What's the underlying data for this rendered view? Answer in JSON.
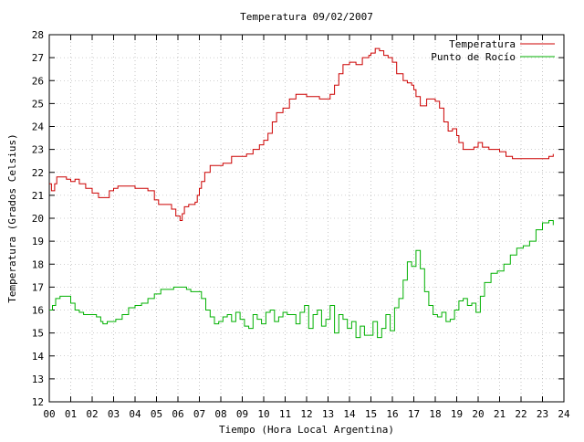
{
  "chart_data": {
    "type": "line",
    "title": "Temperatura 09/02/2007",
    "xlabel": "Tiempo (Hora Local Argentina)",
    "ylabel": "Temperatura (Grados Celsius)",
    "xlim": [
      0,
      24
    ],
    "ylim": [
      12,
      28
    ],
    "xticks": [
      "00",
      "01",
      "02",
      "03",
      "04",
      "05",
      "06",
      "07",
      "08",
      "09",
      "10",
      "11",
      "12",
      "13",
      "14",
      "15",
      "16",
      "17",
      "18",
      "19",
      "20",
      "21",
      "22",
      "23",
      "24"
    ],
    "yticks": [
      "12",
      "13",
      "14",
      "15",
      "16",
      "17",
      "18",
      "19",
      "20",
      "21",
      "22",
      "23",
      "24",
      "25",
      "26",
      "27",
      "28"
    ],
    "grid": true,
    "legend_position": "top-right",
    "series": [
      {
        "name": "Temperatura",
        "color": "#cc0000",
        "x": [
          0.0,
          0.1,
          0.2,
          0.25,
          0.35,
          0.5,
          0.8,
          1.0,
          1.2,
          1.4,
          1.7,
          2.0,
          2.3,
          2.6,
          2.8,
          3.0,
          3.2,
          3.4,
          3.6,
          3.8,
          4.0,
          4.3,
          4.6,
          4.9,
          5.1,
          5.4,
          5.7,
          5.9,
          6.1,
          6.2,
          6.3,
          6.5,
          6.8,
          6.9,
          7.0,
          7.1,
          7.25,
          7.5,
          7.8,
          8.1,
          8.5,
          8.8,
          9.0,
          9.2,
          9.5,
          9.8,
          10.0,
          10.2,
          10.4,
          10.6,
          10.9,
          11.2,
          11.5,
          11.8,
          12.0,
          12.3,
          12.6,
          12.9,
          13.1,
          13.3,
          13.5,
          13.7,
          14.0,
          14.3,
          14.6,
          14.9,
          15.0,
          15.2,
          15.4,
          15.6,
          15.8,
          16.0,
          16.2,
          16.5,
          16.7,
          16.9,
          17.0,
          17.1,
          17.3,
          17.6,
          17.9,
          18.0,
          18.2,
          18.4,
          18.6,
          18.8,
          19.0,
          19.1,
          19.3,
          19.5,
          19.8,
          20.0,
          20.2,
          20.5,
          20.8,
          21.0,
          21.3,
          21.6,
          21.9,
          22.1,
          22.4,
          22.7,
          23.0,
          23.3,
          23.5
        ],
        "values": [
          21.5,
          21.2,
          21.2,
          21.5,
          21.8,
          21.8,
          21.7,
          21.6,
          21.7,
          21.5,
          21.3,
          21.1,
          20.9,
          20.9,
          21.2,
          21.3,
          21.4,
          21.4,
          21.4,
          21.4,
          21.3,
          21.3,
          21.2,
          20.8,
          20.6,
          20.6,
          20.4,
          20.1,
          19.9,
          20.2,
          20.5,
          20.6,
          20.7,
          21.0,
          21.3,
          21.6,
          22.0,
          22.3,
          22.3,
          22.4,
          22.7,
          22.7,
          22.7,
          22.8,
          23.0,
          23.2,
          23.4,
          23.7,
          24.2,
          24.6,
          24.8,
          25.2,
          25.4,
          25.4,
          25.3,
          25.3,
          25.2,
          25.2,
          25.4,
          25.8,
          26.3,
          26.7,
          26.8,
          26.7,
          27.0,
          27.1,
          27.2,
          27.4,
          27.3,
          27.1,
          27.0,
          26.8,
          26.3,
          26.0,
          25.9,
          25.8,
          25.6,
          25.3,
          24.9,
          25.2,
          25.2,
          25.1,
          24.8,
          24.2,
          23.8,
          23.9,
          23.6,
          23.3,
          23.0,
          23.0,
          23.1,
          23.3,
          23.1,
          23.0,
          23.0,
          22.9,
          22.7,
          22.6,
          22.6,
          22.6,
          22.6,
          22.6,
          22.6,
          22.7,
          22.8
        ]
      },
      {
        "name": "Punto de Rocío",
        "color": "#00b000",
        "x": [
          0.0,
          0.15,
          0.3,
          0.5,
          0.8,
          1.0,
          1.2,
          1.4,
          1.6,
          1.8,
          2.0,
          2.2,
          2.4,
          2.5,
          2.7,
          2.9,
          3.1,
          3.4,
          3.7,
          4.0,
          4.3,
          4.6,
          4.9,
          5.2,
          5.5,
          5.8,
          6.1,
          6.4,
          6.6,
          6.9,
          7.1,
          7.3,
          7.5,
          7.7,
          7.9,
          8.1,
          8.3,
          8.5,
          8.7,
          8.9,
          9.1,
          9.3,
          9.5,
          9.7,
          9.9,
          10.1,
          10.3,
          10.5,
          10.7,
          10.9,
          11.1,
          11.3,
          11.5,
          11.7,
          11.9,
          12.1,
          12.3,
          12.5,
          12.7,
          12.9,
          13.1,
          13.3,
          13.5,
          13.7,
          13.9,
          14.1,
          14.3,
          14.5,
          14.7,
          14.9,
          15.1,
          15.3,
          15.5,
          15.7,
          15.9,
          16.1,
          16.3,
          16.5,
          16.7,
          16.9,
          17.1,
          17.3,
          17.5,
          17.7,
          17.9,
          18.1,
          18.3,
          18.5,
          18.7,
          18.9,
          19.1,
          19.3,
          19.5,
          19.7,
          19.9,
          20.1,
          20.3,
          20.6,
          20.9,
          21.2,
          21.5,
          21.8,
          22.1,
          22.4,
          22.7,
          23.0,
          23.3,
          23.5
        ],
        "values": [
          16.0,
          16.2,
          16.5,
          16.6,
          16.6,
          16.3,
          16.0,
          15.9,
          15.8,
          15.8,
          15.8,
          15.7,
          15.5,
          15.4,
          15.5,
          15.5,
          15.6,
          15.8,
          16.1,
          16.2,
          16.3,
          16.5,
          16.7,
          16.9,
          16.9,
          17.0,
          17.0,
          16.9,
          16.8,
          16.8,
          16.5,
          16.0,
          15.7,
          15.4,
          15.5,
          15.7,
          15.8,
          15.5,
          15.9,
          15.6,
          15.3,
          15.2,
          15.8,
          15.6,
          15.4,
          15.9,
          16.0,
          15.5,
          15.7,
          15.9,
          15.8,
          15.8,
          15.4,
          15.9,
          16.2,
          15.2,
          15.8,
          16.0,
          15.3,
          15.6,
          16.2,
          15.0,
          15.8,
          15.6,
          15.2,
          15.5,
          14.8,
          15.3,
          14.9,
          14.9,
          15.5,
          14.8,
          15.2,
          15.8,
          15.1,
          16.1,
          16.5,
          17.3,
          18.1,
          17.9,
          18.6,
          17.8,
          16.8,
          16.2,
          15.8,
          15.7,
          15.9,
          15.5,
          15.6,
          16.0,
          16.4,
          16.5,
          16.2,
          16.3,
          15.9,
          16.6,
          17.2,
          17.6,
          17.7,
          18.0,
          18.4,
          18.7,
          18.8,
          19.0,
          19.5,
          19.8,
          19.9,
          19.7
        ]
      }
    ]
  }
}
